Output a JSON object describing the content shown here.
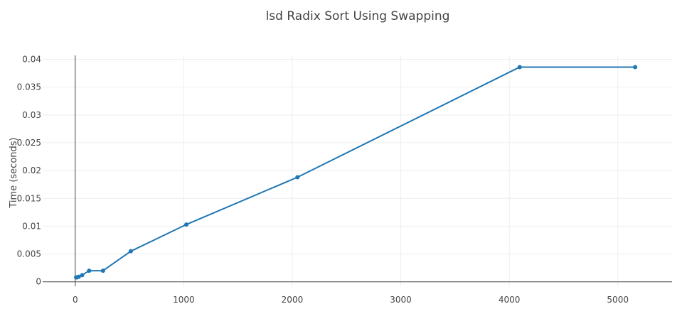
{
  "chart_data": {
    "type": "line",
    "title": "lsd Radix Sort Using Swapping",
    "xlabel": "",
    "ylabel": "Time (seconds)",
    "xlim": [
      -300,
      5500
    ],
    "ylim": [
      -0.0008,
      0.0407
    ],
    "x_ticks": [
      0,
      1000,
      2000,
      3000,
      4000,
      5000
    ],
    "x_tick_labels": [
      "0",
      "1000",
      "2000",
      "3000",
      "4000",
      "5000"
    ],
    "y_ticks": [
      0,
      0.005,
      0.01,
      0.015,
      0.02,
      0.025,
      0.03,
      0.035,
      0.04
    ],
    "y_tick_labels": [
      "0",
      "0.005",
      "0.01",
      "0.015",
      "0.02",
      "0.025",
      "0.03",
      "0.035",
      "0.04"
    ],
    "grid": true,
    "legend": "none",
    "series": [
      {
        "color": "#1f77b4",
        "x": [
          8,
          16,
          32,
          64,
          128,
          256,
          512,
          1024,
          2048,
          4096,
          5160
        ],
        "y": [
          0.0008,
          0.0008,
          0.0009,
          0.0012,
          0.002,
          0.002,
          0.0055,
          0.0103,
          0.0188,
          0.0386,
          0.0386
        ]
      }
    ]
  }
}
